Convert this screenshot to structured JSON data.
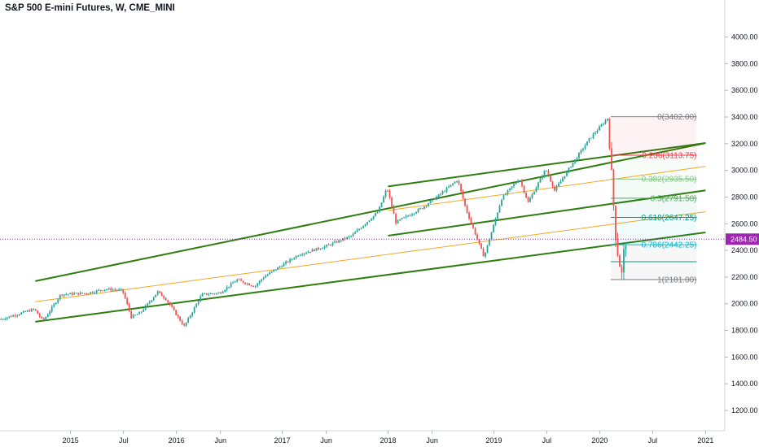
{
  "chart_data": {
    "type": "candlestick",
    "title": "S&P 500 E-mini Futures, W, CME_MINI",
    "x_axis": {
      "ticks": [
        "2015",
        "Jul",
        "2016",
        "Jun",
        "2017",
        "Jun",
        "2018",
        "Jun",
        "2019",
        "Jul",
        "2020",
        "Jul",
        "2021"
      ],
      "range": [
        "2014-05",
        "2021-03"
      ]
    },
    "y_axis": {
      "ticks": [
        "1200.00",
        "1400.00",
        "1600.00",
        "1800.00",
        "2000.00",
        "2200.00",
        "2400.00",
        "2600.00",
        "2800.00",
        "3000.00",
        "3200.00",
        "3400.00",
        "3600.00",
        "3800.00",
        "4000.00"
      ],
      "range": [
        1060,
        4180
      ]
    },
    "current_price": {
      "label": "2484.50",
      "value": 2484.5,
      "color": "#9c27b0"
    },
    "fib_levels": [
      {
        "label": "0(3402.00)",
        "value": 3402.0,
        "color": "#787b86"
      },
      {
        "label": "0.236(3113.75)",
        "value": 3113.75,
        "color": "#f23645"
      },
      {
        "label": "0.382(2935.50)",
        "value": 2935.5,
        "color": "#81c784"
      },
      {
        "label": "0.5(2791.50)",
        "value": 2791.5,
        "color": "#4caf50"
      },
      {
        "label": "0.618(2647.25)",
        "value": 2647.25,
        "color": "#089981"
      },
      {
        "label": "0.786(2442.25)",
        "value": 2442.25,
        "color": "#00bcd4"
      },
      {
        "label": "1(2181.00)",
        "value": 2181.0,
        "color": "#787b86"
      }
    ],
    "trendlines": [
      {
        "kind": "channel-upper",
        "color": "#2e7d0f",
        "from": [
          "2014-09",
          2170
        ],
        "to": [
          "2021-01",
          3205
        ]
      },
      {
        "kind": "channel-lower",
        "color": "#2e7d0f",
        "from": [
          "2014-09",
          1865
        ],
        "to": [
          "2021-01",
          2535
        ]
      },
      {
        "kind": "channel-middle",
        "color": "#f5a623",
        "from": [
          "2014-09",
          2015
        ],
        "to": [
          "2021-01",
          2690
        ]
      },
      {
        "kind": "upper-channel-upper",
        "color": "#2e7d0f",
        "from": [
          "2018-01",
          2880
        ],
        "to": [
          "2021-01",
          3205
        ]
      },
      {
        "kind": "upper-channel-lower",
        "color": "#2e7d0f",
        "from": [
          "2018-01",
          2510
        ],
        "to": [
          "2021-01",
          2850
        ]
      },
      {
        "kind": "upper-channel-middle",
        "color": "#f5a623",
        "from": [
          "2018-01",
          2700
        ],
        "to": [
          "2021-01",
          3030
        ]
      }
    ],
    "candle_colors": {
      "up": "#26a69a",
      "down": "#ef5350"
    },
    "price_path": [
      [
        "2014-05",
        1880
      ],
      [
        "2014-09",
        1960
      ],
      [
        "2014-10",
        1870
      ],
      [
        "2014-12",
        2070
      ],
      [
        "2015-03",
        2080
      ],
      [
        "2015-05",
        2110
      ],
      [
        "2015-07",
        2100
      ],
      [
        "2015-08",
        1900
      ],
      [
        "2015-09",
        1930
      ],
      [
        "2015-11",
        2090
      ],
      [
        "2015-12",
        2030
      ],
      [
        "2016-02",
        1830
      ],
      [
        "2016-04",
        2070
      ],
      [
        "2016-06",
        2080
      ],
      [
        "2016-08",
        2180
      ],
      [
        "2016-10",
        2130
      ],
      [
        "2016-11",
        2200
      ],
      [
        "2017-03",
        2370
      ],
      [
        "2017-06",
        2430
      ],
      [
        "2017-09",
        2510
      ],
      [
        "2017-12",
        2690
      ],
      [
        "2018-01",
        2870
      ],
      [
        "2018-02",
        2610
      ],
      [
        "2018-05",
        2720
      ],
      [
        "2018-07",
        2820
      ],
      [
        "2018-09",
        2930
      ],
      [
        "2018-10",
        2700
      ],
      [
        "2018-12",
        2350
      ],
      [
        "2019-02",
        2790
      ],
      [
        "2019-04",
        2940
      ],
      [
        "2019-05",
        2760
      ],
      [
        "2019-07",
        3010
      ],
      [
        "2019-08",
        2850
      ],
      [
        "2019-10",
        3050
      ],
      [
        "2019-12",
        3240
      ],
      [
        "2020-02",
        3390
      ],
      [
        "2020-03",
        2450
      ],
      [
        "2020-03-20",
        2210
      ],
      [
        "2020-04",
        2480
      ]
    ],
    "grid": false,
    "legend": "none"
  }
}
